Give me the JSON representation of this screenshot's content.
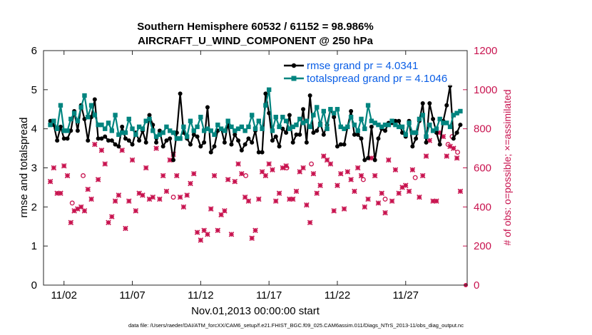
{
  "chart_data": {
    "type": "line",
    "title_line1": "Southern Hemisphere 60532 / 61152 = 98.986%",
    "title_line2": "AIRCRAFT_U_WIND_COMPONENT @ 250 hPa",
    "xlabel": "Nov.01,2013 00:00:00 start",
    "ylabel_left": "rmse and totalspread",
    "ylabel_right": "# of obs: o=possible; ×=assimilated",
    "footer": "data file: /Users/raeder/DAI/ATM_forcXX/CAM6_setup/f.e21.FHIST_BGC.f09_025.CAM6assim.011/Diags_NTrS_2013-11/obs_diag_output.nc",
    "xlim": [
      0.5,
      31.5
    ],
    "ylim_left": [
      0,
      6
    ],
    "ylim_right": [
      0,
      1200
    ],
    "x_ticks": [
      2,
      7,
      12,
      17,
      22,
      27
    ],
    "x_tick_labels": [
      "11/02",
      "11/07",
      "11/12",
      "11/17",
      "11/22",
      "11/27"
    ],
    "y_ticks_left": [
      0,
      1,
      2,
      3,
      4,
      5,
      6
    ],
    "y_tick_labels_left": [
      "0",
      "1",
      "2",
      "3",
      "4",
      "5",
      "6"
    ],
    "y_ticks_right": [
      0,
      200,
      400,
      600,
      800,
      1000,
      1200
    ],
    "y_tick_labels_right": [
      "0",
      "200",
      "400",
      "600",
      "800",
      "1000",
      "1200"
    ],
    "legend": [
      "rmse grand pr = 4.0341",
      "totalspread grand pr = 4.1046"
    ],
    "colors": {
      "rmse": "#000000",
      "spread": "#00847f",
      "obs": "#c8134f",
      "legend_text": "#0a5ee6"
    },
    "series": [
      {
        "name": "rmse",
        "x": [
          1.0,
          1.25,
          1.5,
          1.75,
          2.0,
          2.25,
          2.5,
          2.75,
          3.0,
          3.25,
          3.5,
          3.75,
          4.0,
          4.25,
          4.5,
          4.75,
          5.0,
          5.25,
          5.5,
          5.75,
          6.0,
          6.25,
          6.5,
          6.75,
          7.0,
          7.25,
          7.5,
          7.75,
          8.0,
          8.25,
          8.5,
          8.75,
          9.0,
          9.25,
          9.5,
          9.75,
          10.0,
          10.25,
          10.5,
          10.75,
          11.0,
          11.25,
          11.5,
          11.75,
          12.0,
          12.25,
          12.5,
          12.75,
          13.0,
          13.25,
          13.5,
          13.75,
          14.0,
          14.25,
          14.5,
          14.75,
          15.0,
          15.25,
          15.5,
          15.75,
          16.0,
          16.25,
          16.5,
          16.75,
          17.0,
          17.25,
          17.5,
          17.75,
          18.0,
          18.25,
          18.5,
          18.75,
          19.0,
          19.25,
          19.5,
          19.75,
          20.0,
          20.25,
          20.5,
          20.75,
          21.0,
          21.25,
          21.5,
          21.75,
          22.0,
          22.25,
          22.5,
          22.75,
          23.0,
          23.25,
          23.5,
          23.75,
          24.0,
          24.25,
          24.5,
          24.75,
          25.0,
          25.25,
          25.5,
          25.75,
          26.0,
          26.25,
          26.5,
          26.75,
          27.0,
          27.25,
          27.5,
          27.75,
          28.0,
          28.25,
          28.5,
          28.75,
          29.0,
          29.25,
          29.5,
          29.75,
          30.0,
          30.25,
          30.5,
          30.75,
          31.0
        ],
        "values": [
          4.2,
          4.1,
          3.7,
          4.05,
          3.75,
          3.75,
          3.95,
          4.45,
          3.95,
          4.6,
          4.25,
          3.7,
          4.3,
          4.75,
          3.75,
          3.75,
          3.8,
          3.7,
          3.7,
          3.6,
          3.55,
          4.05,
          3.75,
          3.7,
          3.6,
          3.9,
          3.7,
          3.95,
          3.65,
          4.35,
          4.1,
          3.65,
          3.95,
          3.55,
          3.7,
          3.75,
          3.2,
          3.9,
          4.9,
          3.9,
          3.75,
          3.6,
          3.85,
          3.8,
          3.55,
          3.65,
          4.55,
          3.4,
          3.55,
          3.95,
          4.0,
          3.65,
          4.15,
          3.6,
          3.85,
          3.7,
          3.45,
          3.6,
          3.75,
          3.65,
          3.95,
          3.4,
          3.4,
          4.9,
          4.4,
          3.7,
          3.8,
          3.55,
          4.0,
          3.9,
          4.35,
          3.65,
          3.85,
          3.85,
          4.5,
          3.65,
          4.85,
          3.9,
          3.95,
          4.15,
          3.85,
          4.1,
          4.5,
          4.3,
          3.55,
          3.6,
          3.6,
          4.05,
          4.45,
          3.85,
          3.85,
          3.75,
          3.2,
          3.25,
          4.05,
          3.2,
          3.75,
          4.0,
          3.95,
          4.15,
          4.15,
          4.2,
          4.2,
          3.9,
          3.8,
          4.2,
          3.55,
          3.75,
          4.2,
          4.65,
          3.65,
          4.65,
          4.25,
          3.9,
          3.6,
          4.2,
          4.6,
          5.1,
          3.75,
          3.9,
          4.1
        ]
      },
      {
        "name": "totalspread",
        "x": [
          1.0,
          1.25,
          1.5,
          1.75,
          2.0,
          2.25,
          2.5,
          2.75,
          3.0,
          3.25,
          3.5,
          3.75,
          4.0,
          4.25,
          4.5,
          4.75,
          5.0,
          5.25,
          5.5,
          5.75,
          6.0,
          6.25,
          6.5,
          6.75,
          7.0,
          7.25,
          7.5,
          7.75,
          8.0,
          8.25,
          8.5,
          8.75,
          9.0,
          9.25,
          9.5,
          9.75,
          10.0,
          10.25,
          10.5,
          10.75,
          11.0,
          11.25,
          11.5,
          11.75,
          12.0,
          12.25,
          12.5,
          12.75,
          13.0,
          13.25,
          13.5,
          13.75,
          14.0,
          14.25,
          14.5,
          14.75,
          15.0,
          15.25,
          15.5,
          15.75,
          16.0,
          16.25,
          16.5,
          16.75,
          17.0,
          17.25,
          17.5,
          17.75,
          18.0,
          18.25,
          18.5,
          18.75,
          19.0,
          19.25,
          19.5,
          19.75,
          20.0,
          20.25,
          20.5,
          20.75,
          21.0,
          21.25,
          21.5,
          21.75,
          22.0,
          22.25,
          22.5,
          22.75,
          23.0,
          23.25,
          23.5,
          23.75,
          24.0,
          24.25,
          24.5,
          24.75,
          25.0,
          25.25,
          25.5,
          25.75,
          26.0,
          26.25,
          26.5,
          26.75,
          27.0,
          27.25,
          27.5,
          27.75,
          28.0,
          28.25,
          28.5,
          28.75,
          29.0,
          29.25,
          29.5,
          29.75,
          30.0,
          30.25,
          30.5,
          30.75,
          31.0
        ],
        "values": [
          4.1,
          4.2,
          4.0,
          4.6,
          3.95,
          3.95,
          4.25,
          4.4,
          4.2,
          4.55,
          4.85,
          4.3,
          4.6,
          4.35,
          4.1,
          4.1,
          4.0,
          4.15,
          3.95,
          4.35,
          3.85,
          3.9,
          3.9,
          4.25,
          4.0,
          3.85,
          4.05,
          4.0,
          4.2,
          4.25,
          3.95,
          3.8,
          3.85,
          3.9,
          4.05,
          3.95,
          3.9,
          3.75,
          3.75,
          4.05,
          3.8,
          4.2,
          3.95,
          4.05,
          4.3,
          3.95,
          4.0,
          3.95,
          3.85,
          4.1,
          4.0,
          3.95,
          4.2,
          4.05,
          3.95,
          4.0,
          4.05,
          3.95,
          4.05,
          4.35,
          4.0,
          4.2,
          4.0,
          4.6,
          5.0,
          3.95,
          4.3,
          4.05,
          4.3,
          4.2,
          4.0,
          4.05,
          4.1,
          4.25,
          4.15,
          4.2,
          4.05,
          4.35,
          4.55,
          4.1,
          4.45,
          4.0,
          4.5,
          4.4,
          4.5,
          4.05,
          4.0,
          4.05,
          4.3,
          4.1,
          3.95,
          4.25,
          4.0,
          4.6,
          4.2,
          4.15,
          4.1,
          4.05,
          4.1,
          4.1,
          4.2,
          4.1,
          4.05,
          4.05,
          3.85,
          4.15,
          3.9,
          3.9,
          4.25,
          4.35,
          3.8,
          4.1,
          3.95,
          4.0,
          4.25,
          4.15,
          4.15,
          4.05,
          4.35,
          4.4,
          4.45
        ]
      },
      {
        "name": "obs assimilated",
        "x": [
          1.0,
          1.25,
          1.5,
          1.75,
          2.0,
          2.25,
          2.5,
          2.75,
          3.0,
          3.25,
          3.5,
          3.75,
          4.0,
          4.25,
          4.5,
          4.75,
          5.0,
          5.25,
          5.5,
          5.75,
          6.0,
          6.25,
          6.5,
          6.75,
          7.0,
          7.25,
          7.5,
          7.75,
          8.0,
          8.25,
          8.5,
          8.75,
          9.0,
          9.25,
          9.5,
          9.75,
          10.0,
          10.25,
          10.5,
          10.75,
          11.0,
          11.25,
          11.5,
          11.75,
          12.0,
          12.25,
          12.5,
          12.75,
          13.0,
          13.25,
          13.5,
          13.75,
          14.0,
          14.25,
          14.5,
          14.75,
          15.0,
          15.25,
          15.5,
          15.75,
          16.0,
          16.25,
          16.5,
          16.75,
          17.0,
          17.25,
          17.5,
          17.75,
          18.0,
          18.25,
          18.5,
          18.75,
          19.0,
          19.25,
          19.5,
          19.75,
          20.0,
          20.25,
          20.5,
          20.75,
          21.0,
          21.25,
          21.5,
          21.75,
          22.0,
          22.25,
          22.5,
          22.75,
          23.0,
          23.25,
          23.5,
          23.75,
          24.0,
          24.25,
          24.5,
          24.75,
          25.0,
          25.25,
          25.5,
          25.75,
          26.0,
          26.25,
          26.5,
          26.75,
          27.0,
          27.25,
          27.5,
          27.75,
          28.0,
          28.25,
          28.5,
          28.75,
          29.0,
          29.25,
          29.5,
          29.75,
          30.0,
          30.25,
          30.5,
          30.75,
          31.0
        ],
        "values": [
          530,
          600,
          470,
          470,
          610,
          560,
          320,
          380,
          390,
          400,
          380,
          490,
          440,
          720,
          540,
          690,
          620,
          320,
          350,
          430,
          460,
          690,
          290,
          430,
          640,
          380,
          470,
          460,
          600,
          440,
          450,
          700,
          440,
          560,
          480,
          640,
          670,
          560,
          450,
          400,
          460,
          520,
          570,
          270,
          230,
          280,
          260,
          390,
          560,
          280,
          360,
          380,
          540,
          260,
          530,
          620,
          570,
          450,
          430,
          240,
          280,
          440,
          580,
          560,
          620,
          590,
          430,
          470,
          600,
          610,
          440,
          440,
          480,
          580,
          600,
          410,
          320,
          570,
          470,
          510,
          660,
          640,
          620,
          380,
          510,
          570,
          390,
          580,
          540,
          480,
          600,
          560,
          400,
          440,
          650,
          560,
          420,
          470,
          370,
          640,
          430,
          590,
          470,
          500,
          510,
          480,
          590,
          780,
          450,
          560,
          660,
          740,
          430,
          430,
          780,
          760,
          660,
          710,
          700,
          650,
          480
        ]
      }
    ],
    "extra_points": {
      "possible_only": [
        [
          2.6,
          420
        ],
        [
          3.4,
          560
        ],
        [
          10.0,
          450
        ],
        [
          18.3,
          600
        ],
        [
          23.9,
          540
        ],
        [
          25.5,
          440
        ],
        [
          27.7,
          550
        ],
        [
          30.4,
          760
        ],
        [
          30.8,
          680
        ],
        [
          30.1,
          720
        ],
        [
          15.3,
          560
        ],
        [
          20.1,
          620
        ]
      ],
      "assimilated_zero_x": 31.5
    }
  }
}
